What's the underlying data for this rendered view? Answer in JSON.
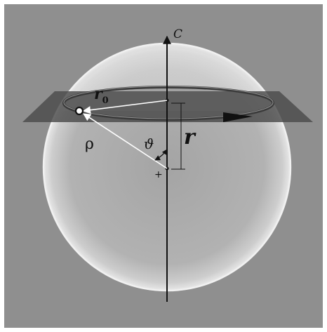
{
  "diagram": {
    "labels": {
      "axis": "C",
      "ring_radius": "r",
      "ring_radius_subscript": "0",
      "distance": "ρ",
      "angle": "ϑ",
      "radius": "r",
      "center_mark": "+"
    },
    "colors": {
      "background": "#8f8f8f",
      "sphere_fill": "#b8b8b8",
      "sphere_rim": "#e8e8e8",
      "plane": "#4a4a4a",
      "ring": "#3a3a3a",
      "axis": "#111111",
      "vector": "#ffffff"
    }
  }
}
